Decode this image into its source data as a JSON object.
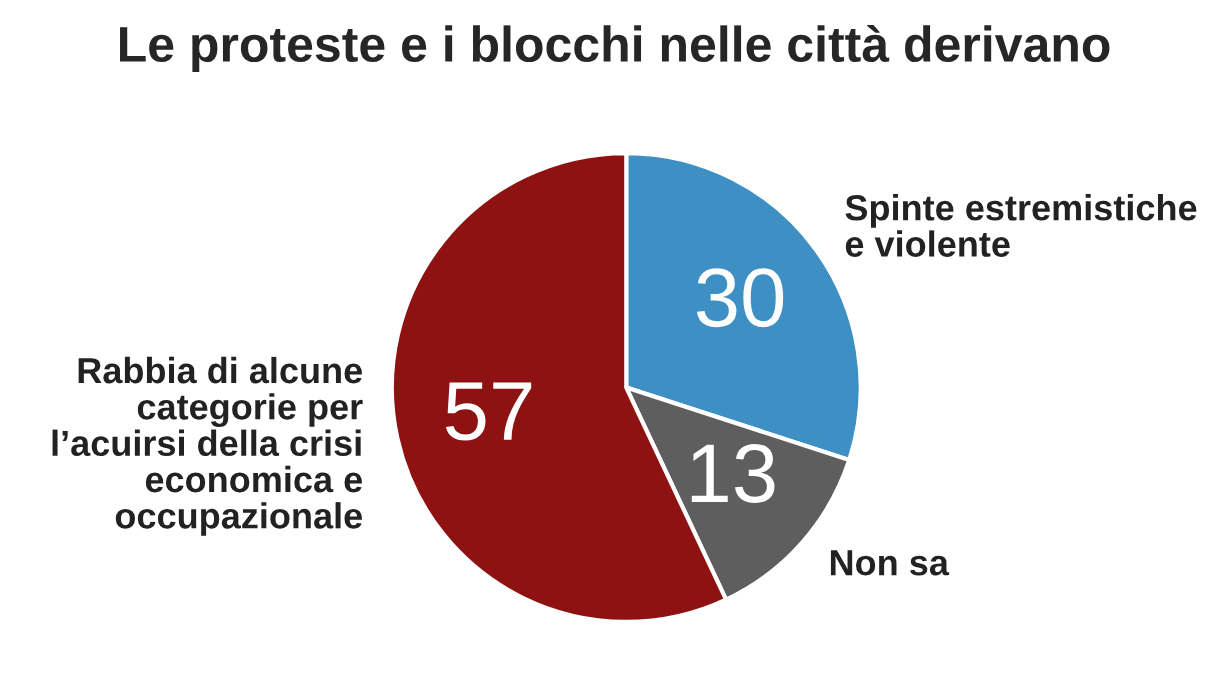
{
  "chart_data": {
    "type": "pie",
    "title": "Le proteste e i blocchi nelle città derivano",
    "categories": [
      "Spinte estremistiche\ne violente",
      "Non sa",
      "Rabbia di alcune\ncategorie per\nl’acuirsi della crisi\neconomica e\noccupazionale"
    ],
    "values": [
      30,
      13,
      57
    ],
    "colors": [
      "#3d8fc4",
      "#5e5e5e",
      "#8e1212"
    ],
    "data_labels": true
  }
}
